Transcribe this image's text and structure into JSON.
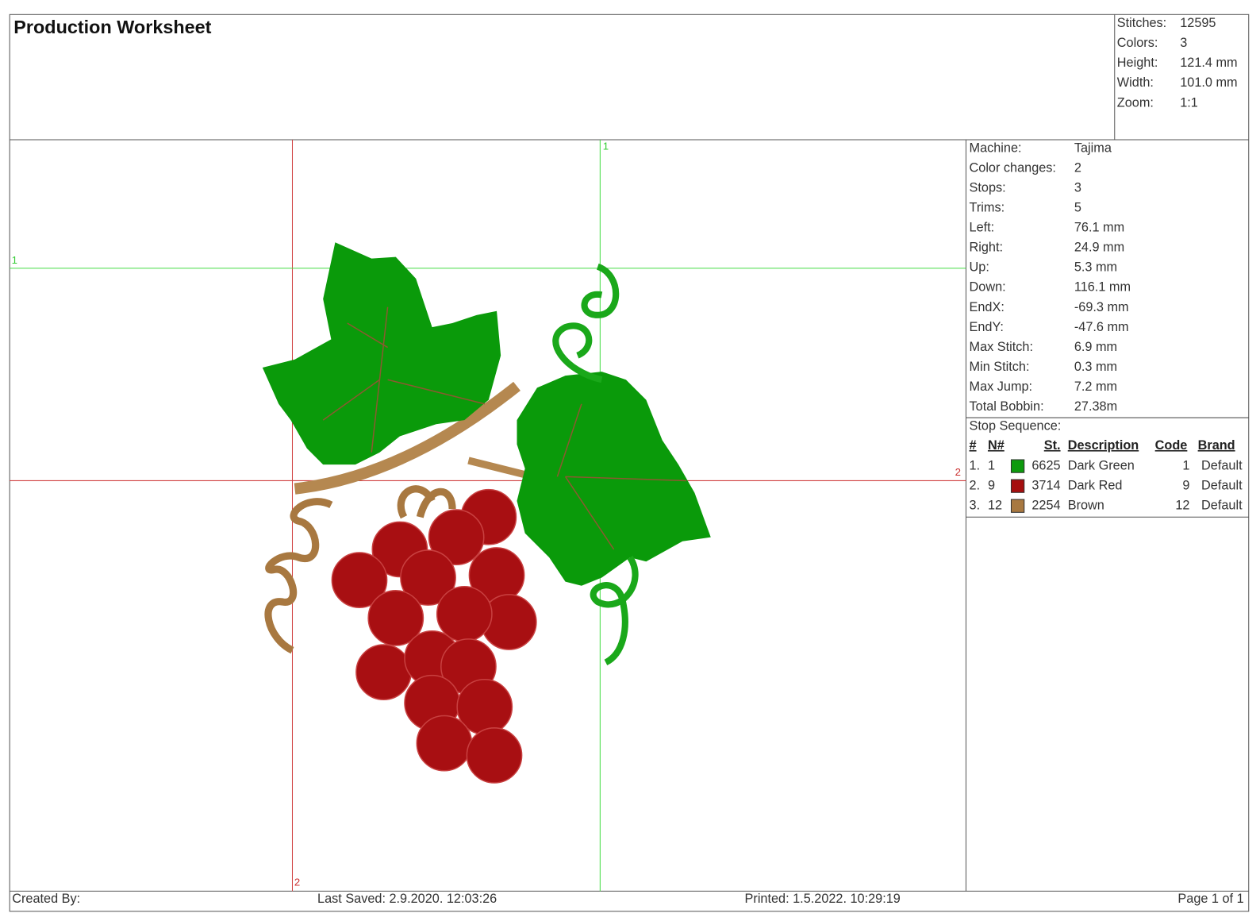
{
  "header": {
    "title": "Production Worksheet"
  },
  "summary": [
    {
      "label": "Stitches:",
      "value": "12595"
    },
    {
      "label": "Colors:",
      "value": "3"
    },
    {
      "label": "Height:",
      "value": "121.4 mm"
    },
    {
      "label": "Width:",
      "value": "101.0 mm"
    },
    {
      "label": "Zoom:",
      "value": "1:1"
    }
  ],
  "details": [
    {
      "label": "Machine:",
      "value": "Tajima"
    },
    {
      "label": "Color changes:",
      "value": "2"
    },
    {
      "label": "Stops:",
      "value": "3"
    },
    {
      "label": "Trims:",
      "value": "5"
    },
    {
      "label": "Left:",
      "value": "76.1 mm"
    },
    {
      "label": "Right:",
      "value": "24.9 mm"
    },
    {
      "label": "Up:",
      "value": "5.3 mm"
    },
    {
      "label": "Down:",
      "value": "116.1 mm"
    },
    {
      "label": "EndX:",
      "value": "-69.3 mm"
    },
    {
      "label": "EndY:",
      "value": "-47.6 mm"
    },
    {
      "label": "Max Stitch:",
      "value": "6.9 mm"
    },
    {
      "label": "Min Stitch:",
      "value": "0.3 mm"
    },
    {
      "label": "Max Jump:",
      "value": "7.2 mm"
    },
    {
      "label": "Total Bobbin:",
      "value": "27.38m"
    }
  ],
  "stop_sequence": {
    "title": "Stop Sequence:",
    "columns": [
      "#",
      "N#",
      "St.",
      "Description",
      "Code",
      "Brand"
    ],
    "rows": [
      {
        "num": "1.",
        "needle": "1",
        "stitches": "6625",
        "description": "Dark Green",
        "code": "1",
        "brand": "Default",
        "color": "#0d9a0d"
      },
      {
        "num": "2.",
        "needle": "9",
        "stitches": "3714",
        "description": "Dark Red",
        "code": "9",
        "brand": "Default",
        "color": "#a50f0f"
      },
      {
        "num": "3.",
        "needle": "12",
        "stitches": "2254",
        "description": "Brown",
        "code": "12",
        "brand": "Default",
        "color": "#a87840"
      }
    ]
  },
  "preview": {
    "guide_labels": [
      "1",
      "1",
      "2",
      "2"
    ]
  },
  "footer": {
    "created_by": "Created By:",
    "last_saved": "Last Saved: 2.9.2020. 12:03:26",
    "printed": "Printed: 1.5.2022. 10:29:19",
    "page": "Page 1 of 1"
  }
}
